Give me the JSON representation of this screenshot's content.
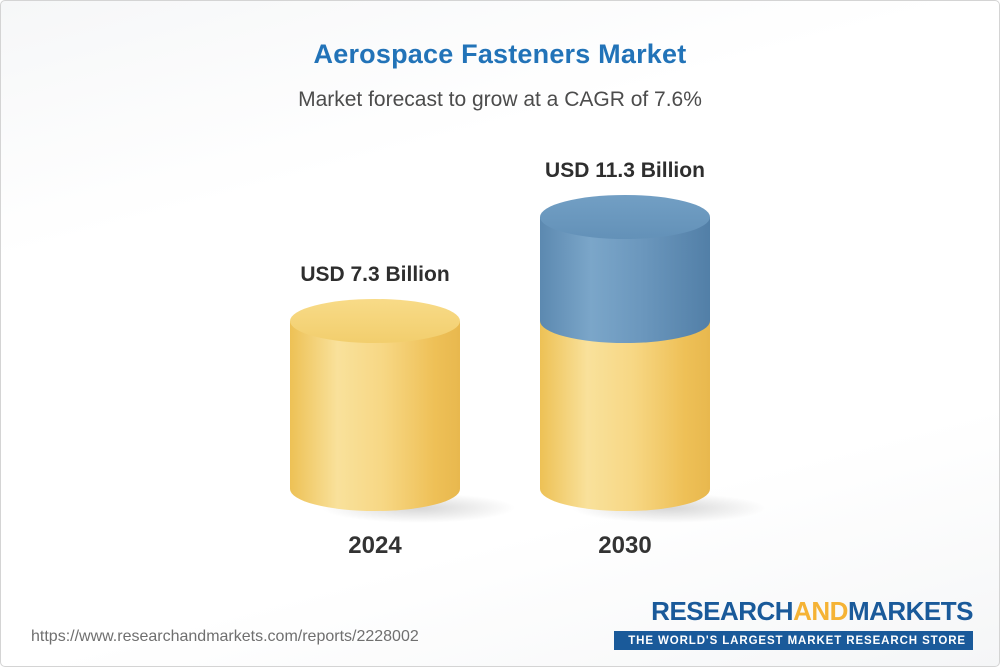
{
  "header": {
    "title": "Aerospace Fasteners Market",
    "subtitle": "Market forecast to grow at a CAGR of 7.6%"
  },
  "chart_data": {
    "type": "bar",
    "subtype": "3d-cylinder",
    "title": "Aerospace Fasteners Market",
    "subtitle": "Market forecast to grow at a CAGR of 7.6%",
    "cagr_percent": 7.6,
    "unit": "USD Billion",
    "categories": [
      "2024",
      "2030"
    ],
    "values": [
      7.3,
      11.3
    ],
    "value_labels": [
      "USD 7.3 Billion",
      "USD 11.3 Billion"
    ],
    "ylim": [
      0,
      12
    ],
    "legend": "none",
    "grid": "off",
    "colors": {
      "bar_base": "#F6D57E",
      "bar_growth": "#6493BA",
      "title": "#2273B8"
    }
  },
  "footer": {
    "url": "https://www.researchandmarkets.com/reports/2228002",
    "logo": {
      "research": "RESEARCH",
      "and": "AND",
      "markets": "MARKETS",
      "tagline": "THE WORLD'S LARGEST MARKET RESEARCH STORE"
    }
  }
}
